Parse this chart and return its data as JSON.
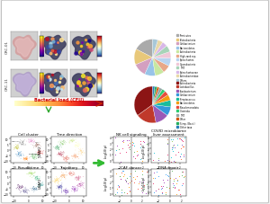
{
  "bg_color": "#f0f0f0",
  "border_color": "#cccccc",
  "pie1_slices": [
    15,
    12,
    10,
    8,
    7,
    6,
    6,
    5,
    5,
    4,
    4,
    4
  ],
  "pie1_colors": [
    "#aaaaaa",
    "#e8c87a",
    "#d4a0c0",
    "#98c4e8",
    "#c8e8a0",
    "#e8a888",
    "#b8d4f0",
    "#f0c8d8",
    "#a8d4b8",
    "#d8b8e8",
    "#e8d8a8",
    "#a8c8d8"
  ],
  "pie1_labels": [
    "Firmicutes",
    "Proteobacteria",
    "Cutibacterium",
    "Bacteroidetes",
    "Actinobacteria",
    "High-rank rep.",
    "Spirochaetes",
    "Cyanobacteria",
    "TM7",
    "Spirochaetaceae",
    "Actinobacteridae",
    "Others"
  ],
  "pie2_slices": [
    35,
    18,
    12,
    8,
    6,
    5,
    4,
    3,
    3,
    2,
    2,
    2
  ],
  "pie2_colors": [
    "#8c1515",
    "#c0392b",
    "#9b59b6",
    "#3498db",
    "#1abc9c",
    "#f39c12",
    "#e74c3c",
    "#2ecc71",
    "#95a5a6",
    "#d35400",
    "#27ae60",
    "#2980b9"
  ],
  "pie2_labels": [
    "Actinobacteria",
    "Lactobacillus",
    "Fusobacterium",
    "Cutibacterium",
    "Streptococcus",
    "Bacteroidetes",
    "Pseudomonadota",
    "Clostridia",
    "TM7",
    "Other",
    "Strep. (Bact.)",
    "Other taxa"
  ],
  "arrow_label": "Bacterial load (CFU)",
  "scatter_colors_nk": [
    "#00bcd4",
    "#e91e63",
    "#4caf50",
    "#ff9800",
    "#9c27b0"
  ],
  "scatter_colors_caf": [
    "#e91e63",
    "#00bcd4",
    "#ff5722",
    "#8bc34a",
    "#673ab7"
  ],
  "scatter_colors_tcell": [
    "#f44336",
    "#2196f3",
    "#4caf50",
    "#ff9800",
    "#9c27b0"
  ],
  "scatter_colors_other": [
    "#4caf50",
    "#e91e63",
    "#ff9800",
    "#2196f3",
    "#9c27b0"
  ]
}
